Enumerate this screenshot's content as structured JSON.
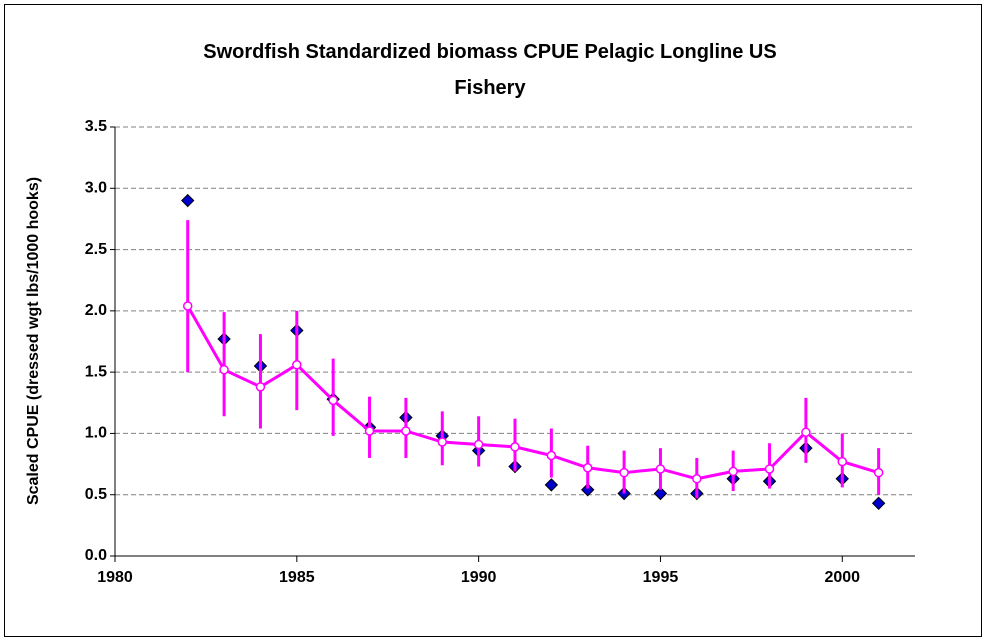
{
  "chart_data": {
    "type": "line",
    "title": "Swordfish Standardized biomass CPUE Pelagic Longline US Fishery",
    "y_label": "Scaled CPUE (dressed wgt lbs/1000 hooks)",
    "x": [
      1982,
      1983,
      1984,
      1985,
      1986,
      1987,
      1988,
      1989,
      1990,
      1991,
      1992,
      1993,
      1994,
      1995,
      1996,
      1997,
      1998,
      1999,
      2000,
      2001
    ],
    "series": [
      {
        "color": "#0000cc",
        "marker": "diamond",
        "line": false,
        "values": [
          2.9,
          1.77,
          1.55,
          1.84,
          1.28,
          1.05,
          1.13,
          0.98,
          0.86,
          0.73,
          0.58,
          0.54,
          0.51,
          0.51,
          0.51,
          0.63,
          0.61,
          0.88,
          0.63,
          0.43
        ]
      },
      {
        "color": "#ff00ff",
        "marker": "circle",
        "line": true,
        "values": [
          2.04,
          1.52,
          1.38,
          1.56,
          1.27,
          1.02,
          1.02,
          0.93,
          0.91,
          0.89,
          0.82,
          0.72,
          0.68,
          0.71,
          0.63,
          0.69,
          0.71,
          1.01,
          0.77,
          0.68
        ],
        "lower": [
          1.5,
          1.14,
          1.04,
          1.19,
          0.98,
          0.8,
          0.8,
          0.74,
          0.73,
          0.69,
          0.64,
          0.55,
          0.51,
          0.54,
          0.47,
          0.53,
          0.55,
          0.76,
          0.56,
          0.5
        ],
        "upper": [
          2.74,
          1.99,
          1.81,
          2.0,
          1.61,
          1.3,
          1.29,
          1.18,
          1.14,
          1.12,
          1.04,
          0.9,
          0.86,
          0.88,
          0.8,
          0.86,
          0.92,
          1.29,
          1.0,
          0.88
        ]
      }
    ],
    "xlim": [
      1980,
      2002
    ],
    "xticks": [
      1980,
      1985,
      1990,
      1995,
      2000
    ],
    "ylim": [
      0,
      3.5
    ],
    "yticks": [
      {
        "value": 0,
        "label": "0.0"
      },
      0.5,
      {
        "value": 1,
        "label": "1.0"
      },
      1.5,
      {
        "value": 2,
        "label": "2.0"
      },
      2.5,
      {
        "value": 3,
        "label": "3.0"
      },
      3.5
    ],
    "grid": true
  }
}
